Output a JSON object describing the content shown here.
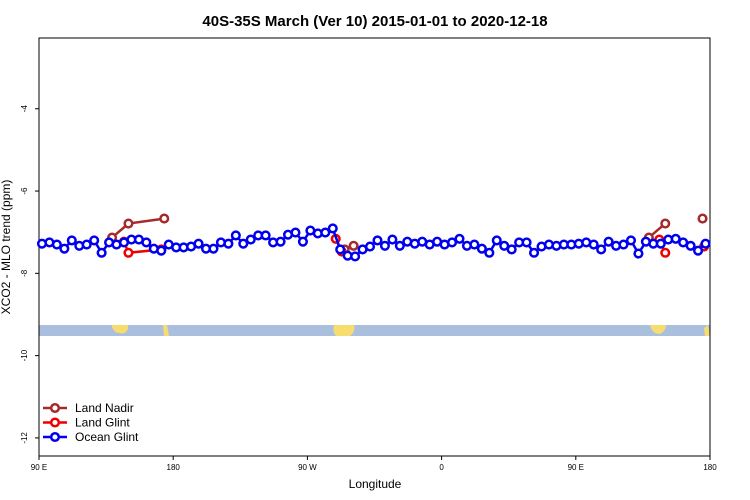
{
  "chart_data": {
    "type": "line",
    "title": "40S-35S March (Ver 10)   2015-01-01 to 2020-12-18",
    "x_label": "Longitude",
    "y_label": "XCO2 - MLO trend (ppm)",
    "xlim": [
      90,
      540
    ],
    "xticks": [
      {
        "value": 90,
        "label": "90 E"
      },
      {
        "value": 180,
        "label": "180"
      },
      {
        "value": 270,
        "label": "90 W"
      },
      {
        "value": 360,
        "label": "0"
      },
      {
        "value": 450,
        "label": "90 E"
      },
      {
        "value": 540,
        "label": "180"
      }
    ],
    "ylim": [
      -12.44,
      -2.28
    ],
    "yticks": [
      -12,
      -10,
      -8,
      -6,
      -4
    ],
    "legend": "bottom-left",
    "series": [
      {
        "name": "Land Nadir",
        "color": "#a52a2a",
        "x": [
          139,
          150,
          174,
          240,
          295,
          301,
          400,
          499,
          510,
          520,
          535
        ],
        "values": [
          -7.13,
          -6.79,
          -6.67,
          null,
          -7.42,
          -7.33,
          null,
          -7.13,
          -6.79,
          null,
          -6.67
        ]
      },
      {
        "name": "Land Glint",
        "color": "#ee0000",
        "x": [
          147,
          150,
          172,
          240,
          289,
          293,
          400,
          506,
          510,
          520,
          536
        ],
        "values": [
          -7.23,
          -7.5,
          -7.42,
          null,
          -7.16,
          -7.47,
          null,
          -7.18,
          -7.5,
          null,
          -7.35
        ]
      },
      {
        "name": "Ocean Glint",
        "color": "#0000ee",
        "x": [
          92,
          97,
          102,
          107,
          112,
          117,
          122,
          127,
          132,
          137,
          142,
          147,
          152,
          157,
          162,
          167,
          172,
          177,
          182,
          187,
          192,
          197,
          202,
          207,
          212,
          217,
          222,
          227,
          232,
          237,
          242,
          247,
          252,
          257,
          262,
          267,
          272,
          277,
          282,
          287,
          292,
          297,
          302,
          307,
          312,
          317,
          322,
          327,
          332,
          337,
          342,
          347,
          352,
          357,
          362,
          367,
          372,
          377,
          382,
          387,
          392,
          397,
          402,
          407,
          412,
          417,
          422,
          427,
          432,
          437,
          442,
          447,
          452,
          457,
          462,
          467,
          472,
          477,
          482,
          487,
          492,
          497,
          502,
          507,
          512,
          517,
          522,
          527,
          532,
          537
        ],
        "values": [
          -7.28,
          -7.25,
          -7.3,
          -7.4,
          -7.2,
          -7.33,
          -7.3,
          -7.2,
          -7.5,
          -7.25,
          -7.3,
          -7.25,
          -7.18,
          -7.18,
          -7.25,
          -7.4,
          -7.45,
          -7.3,
          -7.37,
          -7.37,
          -7.35,
          -7.28,
          -7.4,
          -7.4,
          -7.25,
          -7.28,
          -7.08,
          -7.28,
          -7.18,
          -7.08,
          -7.08,
          -7.25,
          -7.23,
          -7.06,
          -7.01,
          -7.23,
          -6.96,
          -7.03,
          -7.01,
          -6.91,
          -7.42,
          -7.57,
          -7.59,
          -7.42,
          -7.35,
          -7.2,
          -7.33,
          -7.18,
          -7.33,
          -7.23,
          -7.28,
          -7.23,
          -7.3,
          -7.23,
          -7.3,
          -7.25,
          -7.16,
          -7.33,
          -7.3,
          -7.4,
          -7.5,
          -7.2,
          -7.33,
          -7.42,
          -7.25,
          -7.25,
          -7.5,
          -7.35,
          -7.3,
          -7.33,
          -7.3,
          -7.3,
          -7.28,
          -7.25,
          -7.3,
          -7.42,
          -7.23,
          -7.33,
          -7.3,
          -7.2,
          -7.52,
          -7.23,
          -7.28,
          -7.28,
          -7.18,
          -7.16,
          -7.25,
          -7.33,
          -7.45,
          -7.28
        ]
      }
    ]
  }
}
